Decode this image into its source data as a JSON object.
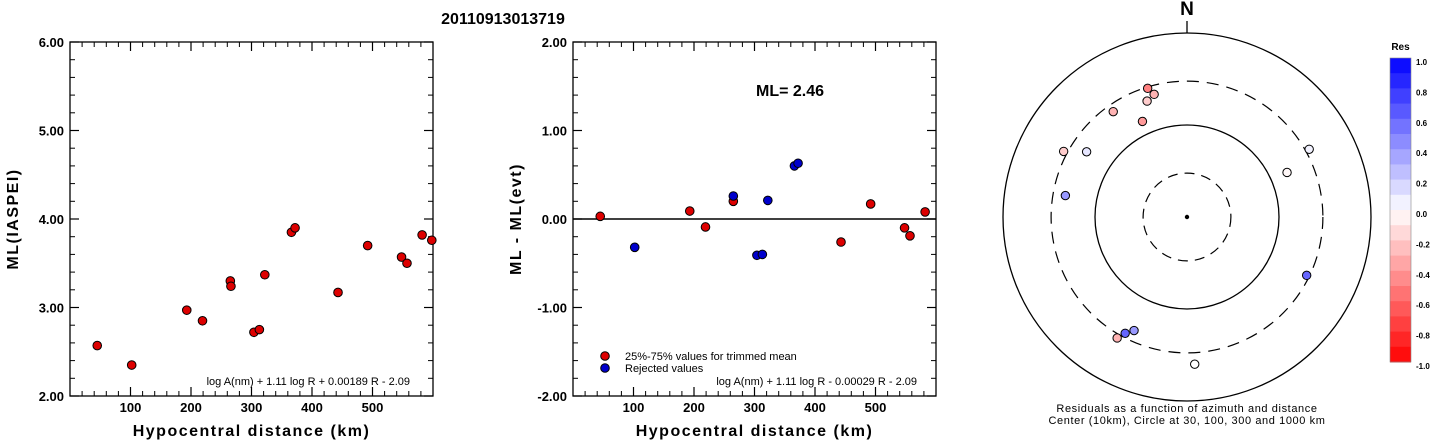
{
  "title": "20110913013719",
  "chart_data": [
    {
      "type": "scatter",
      "xlabel": "Hypocentral distance (km)",
      "ylabel": "ML(IASPEI)",
      "xlim": [
        0,
        600
      ],
      "ylim": [
        2.0,
        6.0
      ],
      "xticks": [
        "100",
        "200",
        "300",
        "400",
        "500"
      ],
      "yticks": [
        "2.00",
        "3.00",
        "4.00",
        "5.00",
        "6.00"
      ],
      "formula": "log A(nm) + 1.11 log R + 0.00189 R - 2.09",
      "series": [
        {
          "color": "#dd0000",
          "points": [
            [
              45,
              2.57
            ],
            [
              102,
              2.35
            ],
            [
              193,
              2.97
            ],
            [
              219,
              2.85
            ],
            [
              265,
              3.3
            ],
            [
              266,
              3.24
            ],
            [
              304,
              2.72
            ],
            [
              313,
              2.75
            ],
            [
              322,
              3.37
            ],
            [
              366,
              3.85
            ],
            [
              372,
              3.9
            ],
            [
              443,
              3.17
            ],
            [
              492,
              3.7
            ],
            [
              548,
              3.57
            ],
            [
              557,
              3.5
            ],
            [
              582,
              3.82
            ],
            [
              598,
              3.76
            ]
          ]
        }
      ]
    },
    {
      "type": "scatter",
      "xlabel": "Hypocentral distance (km)",
      "ylabel": "ML - ML(evt)",
      "xlim": [
        0,
        600
      ],
      "ylim": [
        -2.0,
        2.0
      ],
      "xticks": [
        "100",
        "200",
        "300",
        "400",
        "500"
      ],
      "yticks": [
        "-2.00",
        "-1.00",
        "0.00",
        "1.00",
        "2.00"
      ],
      "annotation": "ML= 2.46",
      "formula": "log A(nm) + 1.11 log R - 0.00029 R - 2.09",
      "legend": [
        {
          "label": "25%-75% values for trimmed mean",
          "color": "#dd0000"
        },
        {
          "label": "Rejected values",
          "color": "#0000cc"
        }
      ],
      "series": [
        {
          "name": "25%-75% values for trimmed mean",
          "color": "#dd0000",
          "points": [
            [
              45,
              0.03
            ],
            [
              193,
              0.09
            ],
            [
              219,
              -0.09
            ],
            [
              265,
              0.2
            ],
            [
              443,
              -0.26
            ],
            [
              492,
              0.17
            ],
            [
              548,
              -0.1
            ],
            [
              557,
              -0.19
            ],
            [
              582,
              0.08
            ]
          ]
        },
        {
          "name": "Rejected values",
          "color": "#0000cc",
          "points": [
            [
              102,
              -0.32
            ],
            [
              265,
              0.26
            ],
            [
              304,
              -0.41
            ],
            [
              313,
              -0.4
            ],
            [
              322,
              0.21
            ],
            [
              366,
              0.6
            ],
            [
              372,
              0.63
            ]
          ]
        }
      ]
    },
    {
      "type": "scatter",
      "north_label": "N",
      "caption_line1": "Residuals as a function of azimuth and distance",
      "caption_line2": "Center (10km), Circle at 30, 100, 300 and 1000 km",
      "colorbar_title": "Res",
      "colorbar_ticks": [
        "1.0",
        "0.8",
        "0.6",
        "0.4",
        "0.2",
        "0.0",
        "-0.2",
        "-0.4",
        "-0.6",
        "-0.8",
        "-1.0"
      ],
      "points": [
        {
          "az": 343,
          "dist": 290,
          "res": -0.5
        },
        {
          "az": 345,
          "dist": 240,
          "res": -0.3
        },
        {
          "az": 341,
          "dist": 215,
          "res": -0.2
        },
        {
          "az": 325,
          "dist": 250,
          "res": -0.3
        },
        {
          "az": 298,
          "dist": 330,
          "res": -0.2
        },
        {
          "az": 303,
          "dist": 200,
          "res": 0.1
        },
        {
          "az": 280,
          "dist": 220,
          "res": 0.4
        },
        {
          "az": 335,
          "dist": 140,
          "res": -0.4
        },
        {
          "az": 66,
          "dist": 155,
          "res": -0.03
        },
        {
          "az": 61,
          "dist": 330,
          "res": 0.05
        },
        {
          "az": 116,
          "dist": 280,
          "res": 0.6
        },
        {
          "az": 205,
          "dist": 230,
          "res": 0.4
        },
        {
          "az": 208,
          "dist": 270,
          "res": 0.6
        },
        {
          "az": 210,
          "dist": 330,
          "res": -0.3
        },
        {
          "az": 177,
          "dist": 400,
          "res": 0.0
        }
      ]
    }
  ]
}
